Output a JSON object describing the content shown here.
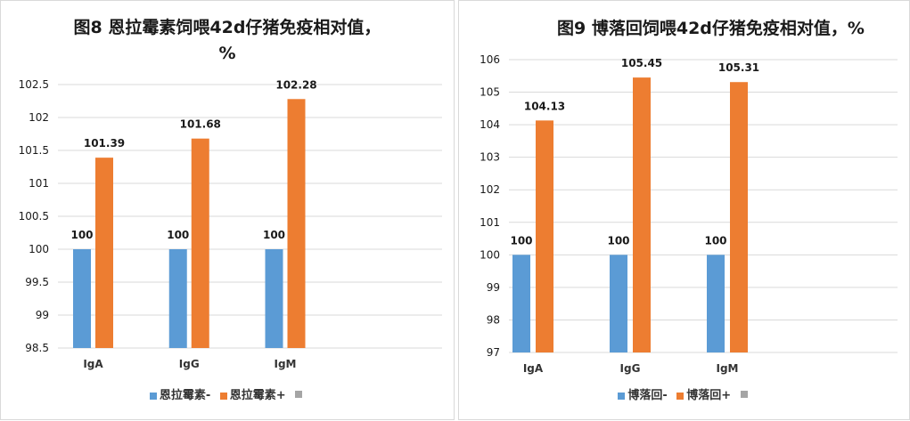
{
  "colors": {
    "minus": "#5b9bd5",
    "plus": "#ed7d31",
    "empty": "#a5a5a5",
    "grid": "#d9d9d9"
  },
  "chart_data": [
    {
      "type": "bar",
      "title_line1": "图8 恩拉霉素饲喂42d仔猪免疫相对值，",
      "title_line2": "%",
      "categories": [
        "IgA",
        "IgG",
        "IgM"
      ],
      "series": [
        {
          "name": "恩拉霉素-",
          "values": [
            100,
            100,
            100
          ],
          "labels": [
            "100",
            "100",
            "100"
          ]
        },
        {
          "name": "恩拉霉素+",
          "values": [
            101.39,
            101.68,
            102.28
          ],
          "labels": [
            "101.39",
            "101.68",
            "102.28"
          ]
        }
      ],
      "legend_extra": "",
      "yticks": [
        "98.5",
        "99",
        "99.5",
        "100",
        "100.5",
        "101",
        "101.5",
        "102",
        "102.5"
      ],
      "ylim": [
        98.5,
        102.5
      ],
      "xlabel": "",
      "ylabel": ""
    },
    {
      "type": "bar",
      "title_line1": "图9 博落回饲喂42d仔猪免疫相对值，%",
      "title_line2": "",
      "categories": [
        "IgA",
        "IgG",
        "IgM"
      ],
      "series": [
        {
          "name": "博落回-",
          "values": [
            100,
            100,
            100
          ],
          "labels": [
            "100",
            "100",
            "100"
          ]
        },
        {
          "name": "博落回+",
          "values": [
            104.13,
            105.45,
            105.31
          ],
          "labels": [
            "104.13",
            "105.45",
            "105.31"
          ]
        }
      ],
      "legend_extra": "",
      "yticks": [
        "97",
        "98",
        "99",
        "100",
        "101",
        "102",
        "103",
        "104",
        "105",
        "106"
      ],
      "ylim": [
        97,
        106
      ],
      "xlabel": "",
      "ylabel": ""
    }
  ]
}
